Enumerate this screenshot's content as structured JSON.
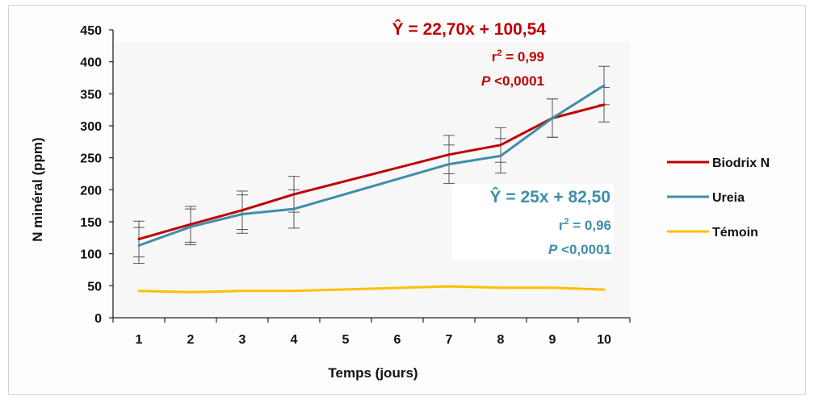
{
  "chart_data": {
    "type": "line",
    "xlabel": "Temps (jours)",
    "ylabel": "N minéral (ppm)",
    "categories": [
      "1",
      "2",
      "3",
      "4",
      "5",
      "6",
      "7",
      "8",
      "9",
      "10"
    ],
    "ylim": [
      0,
      450
    ],
    "yticks": [
      "0",
      "50",
      "100",
      "150",
      "200",
      "250",
      "300",
      "350",
      "400",
      "450"
    ],
    "grid": false,
    "legend_position": "right",
    "series": [
      {
        "name": "Biodrix N",
        "color": "#c00000",
        "x": [
          1,
          2,
          3,
          4,
          7,
          8,
          9,
          10
        ],
        "values": [
          123,
          146,
          168,
          193,
          255,
          270,
          312,
          333
        ],
        "error": [
          28,
          28,
          30,
          28,
          30,
          27,
          30,
          27
        ]
      },
      {
        "name": "Ureia",
        "color": "#3f8ea8",
        "x": [
          1,
          2,
          3,
          4,
          7,
          8,
          9,
          10
        ],
        "values": [
          113,
          142,
          162,
          170,
          240,
          253,
          312,
          363
        ],
        "error": [
          28,
          28,
          30,
          30,
          30,
          27,
          30,
          30
        ]
      },
      {
        "name": "Témoin",
        "color": "#ffc000",
        "x": [
          1,
          2,
          3,
          4,
          7,
          8,
          9,
          10
        ],
        "values": [
          42,
          40,
          42,
          42,
          49,
          47,
          47,
          44
        ],
        "error": [
          0,
          0,
          0,
          0,
          0,
          0,
          0,
          0
        ]
      }
    ],
    "annotations": {
      "biodrix": {
        "equation": "Ŷ = 22,70x + 100,54",
        "r2_prefix": "r",
        "r2_sup": "2",
        "r2_value": " = 0,99",
        "p_italic": "P",
        "p_value": " <0,0001",
        "color": "#c00000"
      },
      "ureia": {
        "equation": "Ŷ = 25x + 82,50",
        "r2_prefix": "r",
        "r2_sup": "2",
        "r2_value": " = 0,96",
        "p_italic": "P",
        "p_value": " <0,0001",
        "color": "#3f8ea8"
      }
    }
  }
}
